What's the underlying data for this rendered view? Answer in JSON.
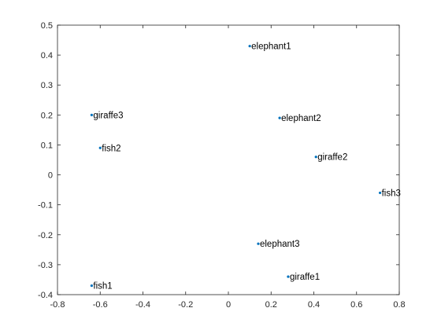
{
  "chart_data": {
    "type": "scatter",
    "title": "",
    "xlabel": "",
    "ylabel": "",
    "xlim": [
      -0.8,
      0.8
    ],
    "ylim": [
      -0.4,
      0.5
    ],
    "xticks": [
      -0.8,
      -0.6,
      -0.4,
      -0.2,
      0,
      0.2,
      0.4,
      0.6,
      0.8
    ],
    "yticks": [
      -0.4,
      -0.3,
      -0.2,
      -0.1,
      0,
      0.1,
      0.2,
      0.3,
      0.4,
      0.5
    ],
    "xtick_labels": [
      "-0.8",
      "-0.6",
      "-0.4",
      "-0.2",
      "0",
      "0.2",
      "0.4",
      "0.6",
      "0.8"
    ],
    "ytick_labels": [
      "-0.4",
      "-0.3",
      "-0.2",
      "-0.1",
      "0",
      "0.1",
      "0.2",
      "0.3",
      "0.4",
      "0.5"
    ],
    "grid": false,
    "box": true,
    "marker_color": "#0072BD",
    "points": [
      {
        "label": "elephant1",
        "x": 0.1,
        "y": 0.43
      },
      {
        "label": "elephant2",
        "x": 0.24,
        "y": 0.19
      },
      {
        "label": "giraffe3",
        "x": -0.64,
        "y": 0.2
      },
      {
        "label": "fish2",
        "x": -0.6,
        "y": 0.09
      },
      {
        "label": "giraffe2",
        "x": 0.41,
        "y": 0.06
      },
      {
        "label": "fish3",
        "x": 0.71,
        "y": -0.06
      },
      {
        "label": "elephant3",
        "x": 0.14,
        "y": -0.23
      },
      {
        "label": "giraffe1",
        "x": 0.28,
        "y": -0.34
      },
      {
        "label": "fish1",
        "x": -0.64,
        "y": -0.37
      }
    ]
  }
}
